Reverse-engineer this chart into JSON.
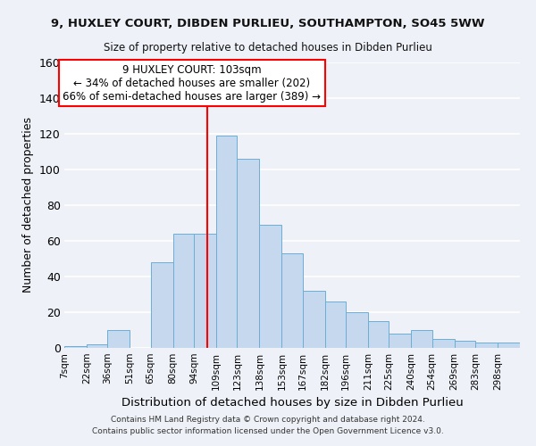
{
  "title1": "9, HUXLEY COURT, DIBDEN PURLIEU, SOUTHAMPTON, SO45 5WW",
  "title2": "Size of property relative to detached houses in Dibden Purlieu",
  "xlabel": "Distribution of detached houses by size in Dibden Purlieu",
  "ylabel": "Number of detached properties",
  "bin_labels": [
    "7sqm",
    "22sqm",
    "36sqm",
    "51sqm",
    "65sqm",
    "80sqm",
    "94sqm",
    "109sqm",
    "123sqm",
    "138sqm",
    "153sqm",
    "167sqm",
    "182sqm",
    "196sqm",
    "211sqm",
    "225sqm",
    "240sqm",
    "254sqm",
    "269sqm",
    "283sqm",
    "298sqm"
  ],
  "bar_values": [
    1,
    2,
    10,
    0,
    48,
    64,
    64,
    119,
    106,
    69,
    53,
    32,
    26,
    20,
    15,
    8,
    10,
    5,
    4,
    3,
    3
  ],
  "bar_color": "#c5d8ed",
  "bar_edge_color": "#6baed6",
  "vline_x": 103,
  "annotation_title": "9 HUXLEY COURT: 103sqm",
  "annotation_line1": "← 34% of detached houses are smaller (202)",
  "annotation_line2": "66% of semi-detached houses are larger (389) →",
  "ylim": [
    0,
    160
  ],
  "yticks": [
    0,
    20,
    40,
    60,
    80,
    100,
    120,
    140,
    160
  ],
  "footer1": "Contains HM Land Registry data © Crown copyright and database right 2024.",
  "footer2": "Contains public sector information licensed under the Open Government Licence v3.0.",
  "bg_color": "#eef2f8",
  "grid_color": "#ffffff",
  "bin_edges": [
    7,
    22,
    36,
    51,
    65,
    80,
    94,
    109,
    123,
    138,
    153,
    167,
    182,
    196,
    211,
    225,
    240,
    254,
    269,
    283,
    298,
    313
  ]
}
